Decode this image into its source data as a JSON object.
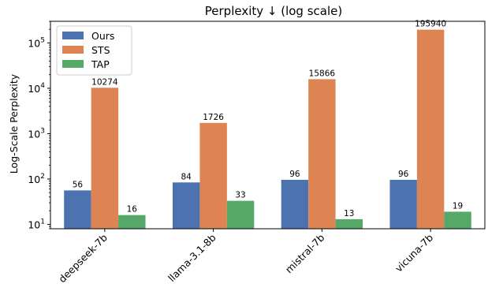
{
  "chart_data": {
    "type": "bar",
    "title": "Perplexity ↓ (log scale)",
    "xlabel": "",
    "ylabel": "Log-Scale Perplexity",
    "y_scale": "log",
    "ylim": [
      8,
      300000
    ],
    "y_ticks": [
      {
        "value": 10,
        "base": "10",
        "exp": "1"
      },
      {
        "value": 100,
        "base": "10",
        "exp": "2"
      },
      {
        "value": 1000,
        "base": "10",
        "exp": "3"
      },
      {
        "value": 10000,
        "base": "10",
        "exp": "4"
      },
      {
        "value": 100000,
        "base": "10",
        "exp": "5"
      }
    ],
    "categories": [
      "deepseek-7b",
      "llama-3.1-8b",
      "mistral-7b",
      "vicuna-7b"
    ],
    "series": [
      {
        "name": "Ours",
        "color": "#4c72b0",
        "values": [
          56,
          84,
          96,
          96
        ]
      },
      {
        "name": "STS",
        "color": "#dd8452",
        "values": [
          10274,
          1726,
          15866,
          195940
        ]
      },
      {
        "name": "TAP",
        "color": "#55a868",
        "values": [
          16,
          33,
          13,
          19
        ]
      }
    ],
    "legend": "top-left",
    "grid": false
  }
}
